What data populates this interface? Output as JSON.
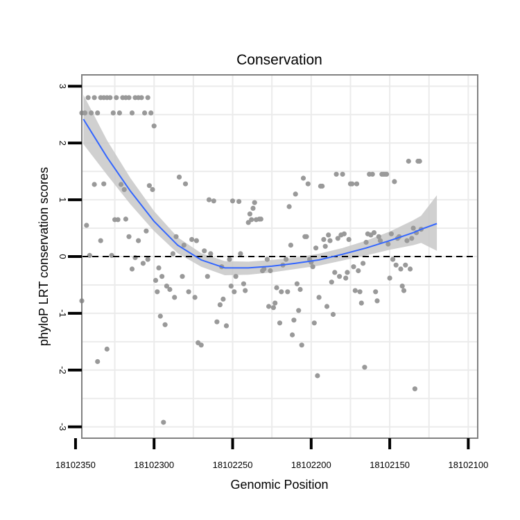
{
  "chart_data": {
    "type": "scatter",
    "title": "Conservation",
    "xlabel": "Genomic Position",
    "ylabel": "phyloP LRT conservation scores",
    "x_reversed": true,
    "xlim": [
      18102346,
      18102094
    ],
    "ylim": [
      -3.2,
      3.2
    ],
    "xticks": [
      18102350,
      18102300,
      18102250,
      18102200,
      18102150,
      18102100
    ],
    "xtick_labels": [
      "18102350",
      "18102300",
      "18102250",
      "18102200",
      "18102150",
      "18102100"
    ],
    "yticks": [
      -3,
      -2,
      -1,
      0,
      1,
      2,
      3
    ],
    "ytick_labels": [
      "-3",
      "-2",
      "-1",
      "0",
      "1",
      "2",
      "3"
    ],
    "reference_line": {
      "y": 0,
      "style": "dashed"
    },
    "grid": true,
    "colors": {
      "points": "#999999",
      "smooth_line": "#3366ff",
      "confidence_band": "#c8c8c8",
      "panel_border": "#808080",
      "grid": "#ebebeb"
    },
    "points": [
      [
        18102346,
        2.53
      ],
      [
        18102344,
        2.53
      ],
      [
        18102342,
        2.8
      ],
      [
        18102340,
        2.53
      ],
      [
        18102338,
        2.8
      ],
      [
        18102336,
        2.53
      ],
      [
        18102334,
        2.8
      ],
      [
        18102332,
        2.8
      ],
      [
        18102330,
        2.8
      ],
      [
        18102328,
        2.8
      ],
      [
        18102326,
        2.53
      ],
      [
        18102324,
        2.8
      ],
      [
        18102322,
        2.53
      ],
      [
        18102320,
        2.8
      ],
      [
        18102318,
        2.8
      ],
      [
        18102316,
        2.8
      ],
      [
        18102314,
        2.53
      ],
      [
        18102312,
        2.8
      ],
      [
        18102310,
        2.8
      ],
      [
        18102308,
        2.8
      ],
      [
        18102306,
        2.53
      ],
      [
        18102304,
        2.8
      ],
      [
        18102302,
        2.53
      ],
      [
        18102300,
        2.3
      ],
      [
        18102346,
        -0.78
      ],
      [
        18102343,
        0.55
      ],
      [
        18102341,
        0.02
      ],
      [
        18102338,
        1.27
      ],
      [
        18102336,
        -1.85
      ],
      [
        18102334,
        0.28
      ],
      [
        18102332,
        1.28
      ],
      [
        18102330,
        -1.63
      ],
      [
        18102327,
        0.02
      ],
      [
        18102325,
        0.65
      ],
      [
        18102323,
        0.65
      ],
      [
        18102321,
        1.27
      ],
      [
        18102319,
        1.18
      ],
      [
        18102318,
        0.66
      ],
      [
        18102316,
        0.35
      ],
      [
        18102314,
        -0.22
      ],
      [
        18102312,
        -0.02
      ],
      [
        18102310,
        0.28
      ],
      [
        18102307,
        -0.12
      ],
      [
        18102305,
        0.45
      ],
      [
        18102304,
        -0.05
      ],
      [
        18102303,
        1.25
      ],
      [
        18102301,
        1.18
      ],
      [
        18102299,
        -0.42
      ],
      [
        18102298,
        -0.62
      ],
      [
        18102297,
        -0.2
      ],
      [
        18102296,
        -1.05
      ],
      [
        18102295,
        -0.35
      ],
      [
        18102294,
        -2.92
      ],
      [
        18102293,
        -1.2
      ],
      [
        18102292,
        -0.52
      ],
      [
        18102290,
        -0.58
      ],
      [
        18102288,
        0.05
      ],
      [
        18102287,
        -0.72
      ],
      [
        18102286,
        0.35
      ],
      [
        18102284,
        1.4
      ],
      [
        18102282,
        -0.35
      ],
      [
        18102281,
        0.2
      ],
      [
        18102280,
        1.28
      ],
      [
        18102278,
        -0.62
      ],
      [
        18102276,
        0.3
      ],
      [
        18102274,
        -0.72
      ],
      [
        18102273,
        0.28
      ],
      [
        18102272,
        -1.52
      ],
      [
        18102270,
        -1.56
      ],
      [
        18102268,
        0.1
      ],
      [
        18102266,
        -0.35
      ],
      [
        18102265,
        1.0
      ],
      [
        18102264,
        0.05
      ],
      [
        18102262,
        0.98
      ],
      [
        18102260,
        -1.15
      ],
      [
        18102258,
        -0.85
      ],
      [
        18102257,
        -0.18
      ],
      [
        18102256,
        -0.75
      ],
      [
        18102254,
        -1.22
      ],
      [
        18102252,
        -0.05
      ],
      [
        18102251,
        -0.52
      ],
      [
        18102250,
        0.98
      ],
      [
        18102249,
        -0.62
      ],
      [
        18102248,
        -0.35
      ],
      [
        18102246,
        0.97
      ],
      [
        18102245,
        0.05
      ],
      [
        18102243,
        -0.48
      ],
      [
        18102242,
        -0.6
      ],
      [
        18102240,
        0.6
      ],
      [
        18102239,
        0.75
      ],
      [
        18102238,
        0.65
      ],
      [
        18102237,
        0.85
      ],
      [
        18102236,
        0.95
      ],
      [
        18102235,
        0.65
      ],
      [
        18102233,
        0.66
      ],
      [
        18102232,
        0.66
      ],
      [
        18102231,
        -0.25
      ],
      [
        18102230,
        -0.22
      ],
      [
        18102228,
        -0.05
      ],
      [
        18102227,
        -0.88
      ],
      [
        18102226,
        -0.25
      ],
      [
        18102224,
        -0.9
      ],
      [
        18102223,
        -0.82
      ],
      [
        18102222,
        -0.55
      ],
      [
        18102220,
        -1.17
      ],
      [
        18102219,
        -0.62
      ],
      [
        18102218,
        -0.15
      ],
      [
        18102216,
        -0.05
      ],
      [
        18102215,
        -0.62
      ],
      [
        18102214,
        0.88
      ],
      [
        18102213,
        0.2
      ],
      [
        18102212,
        -1.38
      ],
      [
        18102211,
        -1.12
      ],
      [
        18102210,
        1.1
      ],
      [
        18102209,
        -0.48
      ],
      [
        18102208,
        -0.95
      ],
      [
        18102207,
        -0.58
      ],
      [
        18102206,
        -1.56
      ],
      [
        18102205,
        1.38
      ],
      [
        18102204,
        0.35
      ],
      [
        18102203,
        0.35
      ],
      [
        18102202,
        1.28
      ],
      [
        18102201,
        -0.05
      ],
      [
        18102200,
        -0.1
      ],
      [
        18102199,
        -0.18
      ],
      [
        18102198,
        -1.17
      ],
      [
        18102197,
        0.15
      ],
      [
        18102196,
        -2.1
      ],
      [
        18102195,
        -0.72
      ],
      [
        18102194,
        1.24
      ],
      [
        18102193,
        1.24
      ],
      [
        18102192,
        0.3
      ],
      [
        18102191,
        0.18
      ],
      [
        18102190,
        -0.88
      ],
      [
        18102189,
        0.38
      ],
      [
        18102188,
        0.28
      ],
      [
        18102187,
        -0.45
      ],
      [
        18102186,
        -1.02
      ],
      [
        18102185,
        -0.28
      ],
      [
        18102184,
        1.45
      ],
      [
        18102183,
        0.32
      ],
      [
        18102182,
        -0.35
      ],
      [
        18102181,
        0.38
      ],
      [
        18102180,
        1.45
      ],
      [
        18102179,
        0.4
      ],
      [
        18102178,
        -0.38
      ],
      [
        18102177,
        -0.28
      ],
      [
        18102176,
        0.3
      ],
      [
        18102175,
        1.28
      ],
      [
        18102174,
        1.28
      ],
      [
        18102173,
        -0.18
      ],
      [
        18102172,
        -0.6
      ],
      [
        18102171,
        1.28
      ],
      [
        18102170,
        -0.25
      ],
      [
        18102169,
        -0.62
      ],
      [
        18102168,
        -0.82
      ],
      [
        18102167,
        -0.12
      ],
      [
        18102166,
        -1.95
      ],
      [
        18102165,
        0.25
      ],
      [
        18102164,
        0.4
      ],
      [
        18102163,
        1.45
      ],
      [
        18102162,
        0.38
      ],
      [
        18102161,
        1.45
      ],
      [
        18102160,
        0.42
      ],
      [
        18102159,
        -0.62
      ],
      [
        18102158,
        -0.78
      ],
      [
        18102157,
        0.35
      ],
      [
        18102156,
        0.28
      ],
      [
        18102155,
        1.45
      ],
      [
        18102154,
        1.45
      ],
      [
        18102153,
        1.45
      ],
      [
        18102152,
        1.45
      ],
      [
        18102151,
        0.22
      ],
      [
        18102150,
        -0.38
      ],
      [
        18102149,
        0.4
      ],
      [
        18102148,
        -0.05
      ],
      [
        18102147,
        1.32
      ],
      [
        18102146,
        -0.15
      ],
      [
        18102145,
        0.32
      ],
      [
        18102144,
        0.35
      ],
      [
        18102143,
        -0.22
      ],
      [
        18102142,
        -0.52
      ],
      [
        18102141,
        -0.6
      ],
      [
        18102140,
        -0.15
      ],
      [
        18102139,
        0.28
      ],
      [
        18102138,
        1.68
      ],
      [
        18102137,
        -0.22
      ],
      [
        18102136,
        0.32
      ],
      [
        18102135,
        0.5
      ],
      [
        18102134,
        -2.33
      ],
      [
        18102133,
        0.42
      ],
      [
        18102132,
        1.68
      ],
      [
        18102131,
        1.68
      ],
      [
        18102130,
        0.48
      ]
    ],
    "smooth_fit": [
      [
        18102345,
        2.42
      ],
      [
        18102330,
        1.75
      ],
      [
        18102315,
        1.15
      ],
      [
        18102300,
        0.62
      ],
      [
        18102285,
        0.2
      ],
      [
        18102270,
        -0.06
      ],
      [
        18102255,
        -0.2
      ],
      [
        18102240,
        -0.2
      ],
      [
        18102225,
        -0.17
      ],
      [
        18102210,
        -0.12
      ],
      [
        18102195,
        -0.06
      ],
      [
        18102180,
        0.04
      ],
      [
        18102165,
        0.15
      ],
      [
        18102150,
        0.28
      ],
      [
        18102135,
        0.42
      ],
      [
        18102130,
        0.48
      ],
      [
        18102120,
        0.58
      ]
    ],
    "smooth_ci_upper": [
      [
        18102345,
        2.85
      ],
      [
        18102330,
        2.05
      ],
      [
        18102315,
        1.38
      ],
      [
        18102300,
        0.8
      ],
      [
        18102285,
        0.34
      ],
      [
        18102270,
        0.06
      ],
      [
        18102255,
        -0.08
      ],
      [
        18102240,
        -0.09
      ],
      [
        18102225,
        -0.06
      ],
      [
        18102210,
        -0.02
      ],
      [
        18102195,
        0.05
      ],
      [
        18102180,
        0.15
      ],
      [
        18102165,
        0.28
      ],
      [
        18102150,
        0.44
      ],
      [
        18102135,
        0.64
      ],
      [
        18102130,
        0.72
      ],
      [
        18102120,
        1.08
      ]
    ],
    "smooth_ci_lower": [
      [
        18102345,
        1.98
      ],
      [
        18102330,
        1.44
      ],
      [
        18102315,
        0.92
      ],
      [
        18102300,
        0.45
      ],
      [
        18102285,
        0.06
      ],
      [
        18102270,
        -0.18
      ],
      [
        18102255,
        -0.33
      ],
      [
        18102240,
        -0.32
      ],
      [
        18102225,
        -0.28
      ],
      [
        18102210,
        -0.22
      ],
      [
        18102195,
        -0.16
      ],
      [
        18102180,
        -0.07
      ],
      [
        18102165,
        0.02
      ],
      [
        18102150,
        0.12
      ],
      [
        18102135,
        0.2
      ],
      [
        18102130,
        0.24
      ],
      [
        18102120,
        0.1
      ]
    ]
  }
}
